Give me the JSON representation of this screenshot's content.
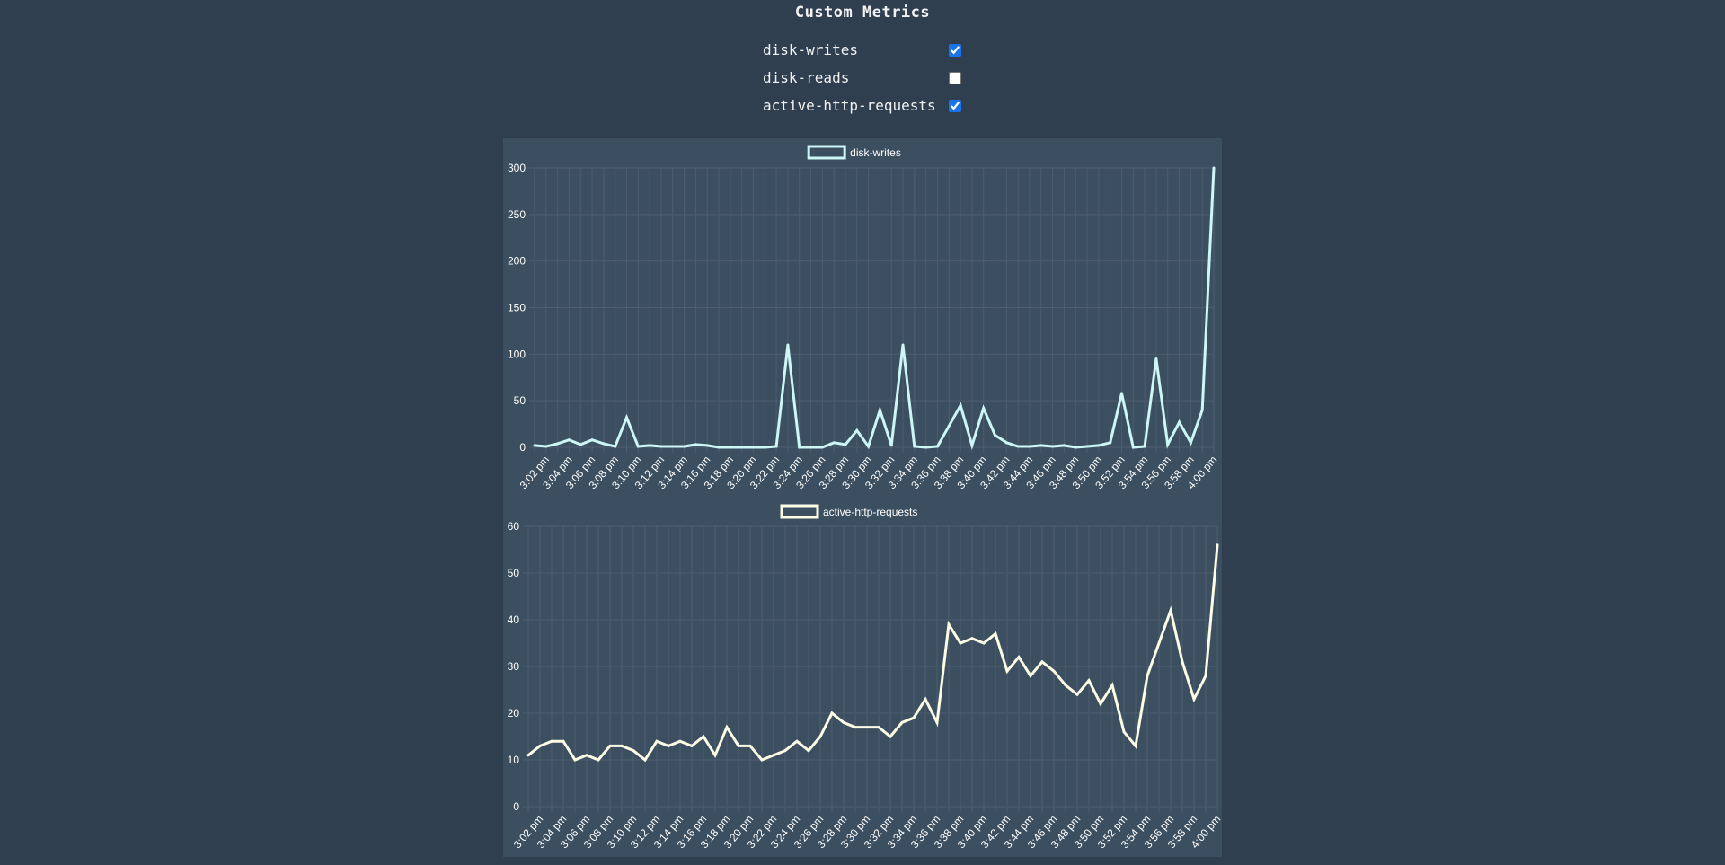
{
  "page": {
    "title": "Custom Metrics"
  },
  "metrics": [
    {
      "label": "disk-writes",
      "checked": true
    },
    {
      "label": "disk-reads",
      "checked": false
    },
    {
      "label": "active-http-requests",
      "checked": true
    }
  ],
  "chart_data": [
    {
      "type": "line",
      "title": "",
      "legend": {
        "position": "top",
        "entries": [
          "disk-writes"
        ]
      },
      "colors": {
        "line": "#cdf6f7",
        "grid": "#4b5d6f",
        "text": "#ffffff"
      },
      "grid": true,
      "ylim": [
        0,
        300
      ],
      "yticks": [
        0,
        50,
        100,
        150,
        200,
        250,
        300
      ],
      "x": [
        "3:01 pm",
        "3:02 pm",
        "3:03 pm",
        "3:04 pm",
        "3:05 pm",
        "3:06 pm",
        "3:07 pm",
        "3:08 pm",
        "3:09 pm",
        "3:10 pm",
        "3:11 pm",
        "3:12 pm",
        "3:13 pm",
        "3:14 pm",
        "3:15 pm",
        "3:16 pm",
        "3:17 pm",
        "3:18 pm",
        "3:19 pm",
        "3:20 pm",
        "3:21 pm",
        "3:22 pm",
        "3:23 pm",
        "3:24 pm",
        "3:25 pm",
        "3:26 pm",
        "3:27 pm",
        "3:28 pm",
        "3:29 pm",
        "3:30 pm",
        "3:31 pm",
        "3:32 pm",
        "3:33 pm",
        "3:34 pm",
        "3:35 pm",
        "3:36 pm",
        "3:37 pm",
        "3:38 pm",
        "3:39 pm",
        "3:40 pm",
        "3:41 pm",
        "3:42 pm",
        "3:43 pm",
        "3:44 pm",
        "3:45 pm",
        "3:46 pm",
        "3:47 pm",
        "3:48 pm",
        "3:49 pm",
        "3:50 pm",
        "3:51 pm",
        "3:52 pm",
        "3:53 pm",
        "3:54 pm",
        "3:55 pm",
        "3:56 pm",
        "3:57 pm",
        "3:58 pm",
        "3:59 pm",
        "4:00 pm"
      ],
      "xticks": [
        "3:02 pm",
        "3:04 pm",
        "3:06 pm",
        "3:08 pm",
        "3:10 pm",
        "3:12 pm",
        "3:14 pm",
        "3:16 pm",
        "3:18 pm",
        "3:20 pm",
        "3:22 pm",
        "3:24 pm",
        "3:26 pm",
        "3:28 pm",
        "3:30 pm",
        "3:32 pm",
        "3:34 pm",
        "3:36 pm",
        "3:38 pm",
        "3:40 pm",
        "3:42 pm",
        "3:44 pm",
        "3:46 pm",
        "3:48 pm",
        "3:50 pm",
        "3:52 pm",
        "3:54 pm",
        "3:56 pm",
        "3:58 pm",
        "4:00 pm"
      ],
      "series": [
        {
          "name": "disk-writes",
          "values": [
            2,
            1,
            4,
            8,
            3,
            8,
            4,
            1,
            32,
            1,
            2,
            1,
            1,
            1,
            3,
            2,
            0,
            0,
            0,
            0,
            0,
            1,
            110,
            0,
            0,
            0,
            5,
            3,
            18,
            1,
            40,
            2,
            110,
            1,
            0,
            1,
            23,
            45,
            2,
            42,
            13,
            5,
            1,
            1,
            2,
            1,
            2,
            0,
            1,
            2,
            5,
            58,
            0,
            1,
            95,
            3,
            27,
            5,
            40,
            300
          ]
        }
      ]
    },
    {
      "type": "line",
      "title": "",
      "legend": {
        "position": "top",
        "entries": [
          "active-http-requests"
        ]
      },
      "colors": {
        "line": "#fdfde6",
        "grid": "#4b5d6f",
        "text": "#ffffff"
      },
      "grid": true,
      "ylim": [
        0,
        60
      ],
      "yticks": [
        0,
        10,
        20,
        30,
        40,
        50,
        60
      ],
      "x": [
        "3:01 pm",
        "3:02 pm",
        "3:03 pm",
        "3:04 pm",
        "3:05 pm",
        "3:06 pm",
        "3:07 pm",
        "3:08 pm",
        "3:09 pm",
        "3:10 pm",
        "3:11 pm",
        "3:12 pm",
        "3:13 pm",
        "3:14 pm",
        "3:15 pm",
        "3:16 pm",
        "3:17 pm",
        "3:18 pm",
        "3:19 pm",
        "3:20 pm",
        "3:21 pm",
        "3:22 pm",
        "3:23 pm",
        "3:24 pm",
        "3:25 pm",
        "3:26 pm",
        "3:27 pm",
        "3:28 pm",
        "3:29 pm",
        "3:30 pm",
        "3:31 pm",
        "3:32 pm",
        "3:33 pm",
        "3:34 pm",
        "3:35 pm",
        "3:36 pm",
        "3:37 pm",
        "3:38 pm",
        "3:39 pm",
        "3:40 pm",
        "3:41 pm",
        "3:42 pm",
        "3:43 pm",
        "3:44 pm",
        "3:45 pm",
        "3:46 pm",
        "3:47 pm",
        "3:48 pm",
        "3:49 pm",
        "3:50 pm",
        "3:51 pm",
        "3:52 pm",
        "3:53 pm",
        "3:54 pm",
        "3:55 pm",
        "3:56 pm",
        "3:57 pm",
        "3:58 pm",
        "3:59 pm",
        "4:00 pm"
      ],
      "xticks": [
        "3:02 pm",
        "3:04 pm",
        "3:06 pm",
        "3:08 pm",
        "3:10 pm",
        "3:12 pm",
        "3:14 pm",
        "3:16 pm",
        "3:18 pm",
        "3:20 pm",
        "3:22 pm",
        "3:24 pm",
        "3:26 pm",
        "3:28 pm",
        "3:30 pm",
        "3:32 pm",
        "3:34 pm",
        "3:36 pm",
        "3:38 pm",
        "3:40 pm",
        "3:42 pm",
        "3:44 pm",
        "3:46 pm",
        "3:48 pm",
        "3:50 pm",
        "3:52 pm",
        "3:54 pm",
        "3:56 pm",
        "3:58 pm",
        "4:00 pm"
      ],
      "series": [
        {
          "name": "active-http-requests",
          "values": [
            11,
            13,
            14,
            14,
            10,
            11,
            10,
            13,
            13,
            12,
            10,
            14,
            13,
            14,
            13,
            15,
            11,
            17,
            13,
            13,
            10,
            11,
            12,
            14,
            12,
            15,
            20,
            18,
            17,
            17,
            17,
            15,
            18,
            19,
            23,
            18,
            39,
            35,
            36,
            35,
            37,
            29,
            32,
            28,
            31,
            29,
            26,
            24,
            27,
            22,
            26,
            16,
            13,
            28,
            35,
            42,
            31,
            23,
            28,
            56
          ]
        }
      ]
    }
  ]
}
